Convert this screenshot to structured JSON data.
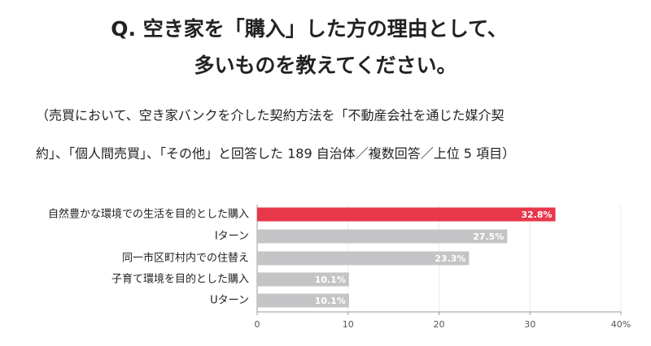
{
  "chart_data": {
    "type": "hbar",
    "title": [
      "Q.  空き家を「購入」した方の理由として、",
      "多いものを教えてください。"
    ],
    "subtitle": [
      "（売買において、空き家バンクを介した契約方法を「不動産会社を通じた媒介契",
      "約」、「個人間売買」、「その他」と回答した 189 自治体／複数回答／上位 5 項目）"
    ],
    "categories": [
      "自然豊かな環境での生活を目的とした購入",
      "Iターン",
      "同一市区町村内での住替え",
      "子育て環境を目的とした購入",
      "Uターン"
    ],
    "values": [
      32.8,
      27.5,
      23.3,
      10.1,
      10.1
    ],
    "value_labels": [
      "32.8%",
      "27.5%",
      "23.3%",
      "10.1%",
      "10.1%"
    ],
    "colors": [
      "#e8374b",
      "#c4c4c6",
      "#c4c4c6",
      "#c4c4c6",
      "#c4c4c6"
    ],
    "xlim": [
      0,
      40
    ],
    "xticks": [
      0,
      10,
      20,
      30,
      {
        "value": 40,
        "label": "40%"
      }
    ],
    "grid": true
  }
}
